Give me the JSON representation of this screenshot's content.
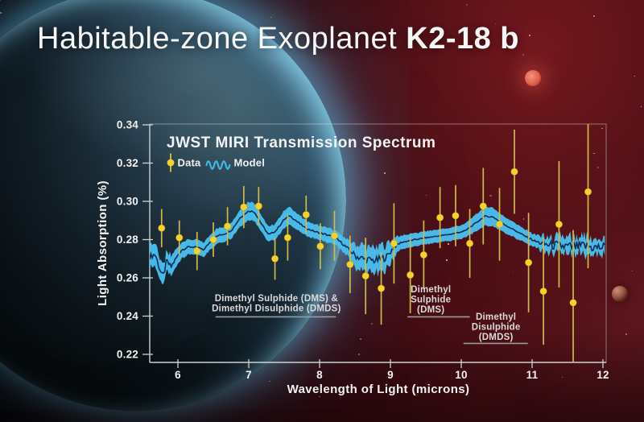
{
  "header": {
    "title_regular": "Habitable-zone Exoplanet",
    "title_bold": "K2-18 b"
  },
  "chart_data": {
    "type": "scatter",
    "title": "JWST MIRI Transmission Spectrum",
    "xlabel": "Wavelength of Light (microns)",
    "ylabel": "Light Absorption (%)",
    "xlim": [
      5.6,
      12.05
    ],
    "ylim": [
      0.2155,
      0.3405
    ],
    "x_ticks": [
      6,
      7,
      8,
      9,
      10,
      11,
      12
    ],
    "y_ticks": [
      0.22,
      0.24,
      0.26,
      0.28,
      0.3,
      0.32,
      0.34
    ],
    "grid": false,
    "legend": {
      "position": "top-left-inside",
      "entries": [
        {
          "label": "Data",
          "marker": "point-with-error-bar",
          "color": "#f5d22a"
        },
        {
          "label": "Model",
          "marker": "wavy-line",
          "color": "#3fb9e8"
        }
      ]
    },
    "data_points": [
      {
        "x": 5.77,
        "y": 0.286,
        "err": 0.01
      },
      {
        "x": 6.02,
        "y": 0.281,
        "err": 0.009
      },
      {
        "x": 6.27,
        "y": 0.274,
        "err": 0.01
      },
      {
        "x": 6.5,
        "y": 0.28,
        "err": 0.009
      },
      {
        "x": 6.7,
        "y": 0.287,
        "err": 0.01
      },
      {
        "x": 6.93,
        "y": 0.297,
        "err": 0.011
      },
      {
        "x": 7.14,
        "y": 0.2975,
        "err": 0.01
      },
      {
        "x": 7.37,
        "y": 0.27,
        "err": 0.011
      },
      {
        "x": 7.55,
        "y": 0.281,
        "err": 0.012
      },
      {
        "x": 7.81,
        "y": 0.293,
        "err": 0.01
      },
      {
        "x": 8.01,
        "y": 0.2765,
        "err": 0.012
      },
      {
        "x": 8.21,
        "y": 0.282,
        "err": 0.013
      },
      {
        "x": 8.43,
        "y": 0.267,
        "err": 0.015
      },
      {
        "x": 8.65,
        "y": 0.261,
        "err": 0.02
      },
      {
        "x": 8.87,
        "y": 0.2545,
        "err": 0.019
      },
      {
        "x": 9.05,
        "y": 0.278,
        "err": 0.021
      },
      {
        "x": 9.28,
        "y": 0.2615,
        "err": 0.02
      },
      {
        "x": 9.47,
        "y": 0.272,
        "err": 0.018
      },
      {
        "x": 9.7,
        "y": 0.2915,
        "err": 0.016
      },
      {
        "x": 9.92,
        "y": 0.2925,
        "err": 0.016
      },
      {
        "x": 10.12,
        "y": 0.278,
        "err": 0.018
      },
      {
        "x": 10.31,
        "y": 0.2975,
        "err": 0.02
      },
      {
        "x": 10.54,
        "y": 0.288,
        "err": 0.019
      },
      {
        "x": 10.75,
        "y": 0.3155,
        "err": 0.022
      },
      {
        "x": 10.95,
        "y": 0.268,
        "err": 0.026
      },
      {
        "x": 11.16,
        "y": 0.253,
        "err": 0.028
      },
      {
        "x": 11.38,
        "y": 0.288,
        "err": 0.033
      },
      {
        "x": 11.58,
        "y": 0.247,
        "err": 0.038
      },
      {
        "x": 11.79,
        "y": 0.305,
        "err": 0.04
      }
    ],
    "model_band": {
      "description": "model center value, band half-width, noise amplitude vs wavelength",
      "points": [
        [
          5.6,
          0.271,
          0.0048,
          0.003
        ],
        [
          5.68,
          0.2725,
          0.0045,
          0.003
        ],
        [
          5.74,
          0.265,
          0.0045,
          0.0035
        ],
        [
          5.79,
          0.26,
          0.004,
          0.0035
        ],
        [
          5.84,
          0.269,
          0.0042,
          0.003
        ],
        [
          5.9,
          0.2655,
          0.0042,
          0.003
        ],
        [
          5.97,
          0.27,
          0.004,
          0.002
        ],
        [
          6.05,
          0.2745,
          0.0038,
          0.001
        ],
        [
          6.15,
          0.2762,
          0.0036,
          0.0008
        ],
        [
          6.28,
          0.276,
          0.0036,
          0.0008
        ],
        [
          6.36,
          0.2745,
          0.0036,
          0.0008
        ],
        [
          6.46,
          0.279,
          0.0036,
          0.0008
        ],
        [
          6.56,
          0.282,
          0.0036,
          0.0008
        ],
        [
          6.66,
          0.283,
          0.0036,
          0.0008
        ],
        [
          6.76,
          0.285,
          0.0038,
          0.0008
        ],
        [
          6.88,
          0.2915,
          0.0042,
          0.0008
        ],
        [
          7.0,
          0.295,
          0.0046,
          0.0008
        ],
        [
          7.08,
          0.2945,
          0.0044,
          0.0008
        ],
        [
          7.2,
          0.287,
          0.0038,
          0.0008
        ],
        [
          7.28,
          0.2825,
          0.0036,
          0.0008
        ],
        [
          7.38,
          0.2845,
          0.0038,
          0.0008
        ],
        [
          7.5,
          0.2905,
          0.0042,
          0.0008
        ],
        [
          7.58,
          0.2925,
          0.0044,
          0.0008
        ],
        [
          7.68,
          0.2895,
          0.004,
          0.0008
        ],
        [
          7.8,
          0.286,
          0.0036,
          0.0008
        ],
        [
          7.95,
          0.284,
          0.0034,
          0.0008
        ],
        [
          8.1,
          0.2825,
          0.0034,
          0.001
        ],
        [
          8.22,
          0.281,
          0.0034,
          0.001
        ],
        [
          8.32,
          0.278,
          0.0036,
          0.0012
        ],
        [
          8.42,
          0.2745,
          0.004,
          0.002
        ],
        [
          8.52,
          0.2712,
          0.0048,
          0.0035
        ],
        [
          8.65,
          0.2695,
          0.0052,
          0.004
        ],
        [
          8.8,
          0.269,
          0.0052,
          0.004
        ],
        [
          8.95,
          0.271,
          0.005,
          0.0038
        ],
        [
          9.05,
          0.2762,
          0.004,
          0.002
        ],
        [
          9.15,
          0.2785,
          0.0034,
          0.0008
        ],
        [
          9.35,
          0.28,
          0.0032,
          0.0006
        ],
        [
          9.6,
          0.2815,
          0.0032,
          0.0006
        ],
        [
          9.85,
          0.2828,
          0.0032,
          0.0006
        ],
        [
          10.05,
          0.2845,
          0.0034,
          0.0006
        ],
        [
          10.2,
          0.2885,
          0.0042,
          0.0006
        ],
        [
          10.33,
          0.2922,
          0.0048,
          0.0006
        ],
        [
          10.45,
          0.2918,
          0.0046,
          0.0006
        ],
        [
          10.6,
          0.288,
          0.004,
          0.0006
        ],
        [
          10.75,
          0.285,
          0.0036,
          0.0006
        ],
        [
          10.9,
          0.2818,
          0.0032,
          0.0008
        ],
        [
          11.05,
          0.279,
          0.0028,
          0.0012
        ],
        [
          11.18,
          0.2775,
          0.0024,
          0.004
        ],
        [
          11.35,
          0.2768,
          0.0022,
          0.0055
        ],
        [
          11.55,
          0.276,
          0.0022,
          0.0058
        ],
        [
          11.75,
          0.2765,
          0.0022,
          0.0058
        ],
        [
          11.9,
          0.2758,
          0.0022,
          0.0058
        ],
        [
          12.04,
          0.276,
          0.0022,
          0.0055
        ]
      ]
    },
    "annotations": [
      {
        "lines": [
          "Dimethyl Sulphide (DMS) &",
          "Dimethyl Disulphide (DMDS)"
        ],
        "x": 7.39,
        "y_top": 0.2478,
        "underline": {
          "x1": 6.53,
          "x2": 8.23,
          "y": 0.2396
        }
      },
      {
        "lines": [
          "Dimethyl",
          "Sulphide",
          "(DMS)"
        ],
        "x": 9.57,
        "y_top": 0.2524,
        "underline": {
          "x1": 9.24,
          "x2": 10.12,
          "y": 0.2396
        }
      },
      {
        "lines": [
          "Dimethyl",
          "Disulphide",
          "(DMDS)"
        ],
        "x": 10.49,
        "y_top": 0.2381,
        "underline": {
          "x1": 10.03,
          "x2": 10.94,
          "y": 0.2257
        }
      }
    ],
    "colors": {
      "data_point": "#f5d22a",
      "error_bar": "#cdbb4a",
      "model_band": "#49c0ef",
      "model_line": "#0e2d52",
      "axis": "#ccd2d2",
      "text": "#f2f2f2",
      "annotation_text": "#ddd9d9",
      "underline": "#9a9a9a"
    }
  }
}
